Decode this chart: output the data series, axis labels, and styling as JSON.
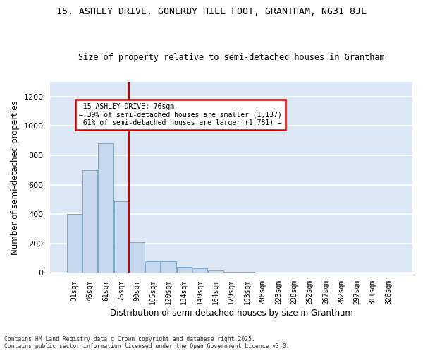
{
  "title1": "15, ASHLEY DRIVE, GONERBY HILL FOOT, GRANTHAM, NG31 8JL",
  "title2": "Size of property relative to semi-detached houses in Grantham",
  "xlabel": "Distribution of semi-detached houses by size in Grantham",
  "ylabel": "Number of semi-detached properties",
  "bar_labels": [
    "31sqm",
    "46sqm",
    "61sqm",
    "75sqm",
    "90sqm",
    "105sqm",
    "120sqm",
    "134sqm",
    "149sqm",
    "164sqm",
    "179sqm",
    "193sqm",
    "208sqm",
    "223sqm",
    "238sqm",
    "252sqm",
    "267sqm",
    "282sqm",
    "297sqm",
    "311sqm",
    "326sqm"
  ],
  "bar_values": [
    400,
    700,
    880,
    490,
    210,
    80,
    80,
    40,
    30,
    15,
    8,
    5,
    3,
    2,
    1,
    1,
    1,
    0,
    0,
    0,
    3
  ],
  "bar_color": "#c5d8ee",
  "bar_edge_color": "#7aabcf",
  "ylim": [
    0,
    1300
  ],
  "yticks": [
    0,
    200,
    400,
    600,
    800,
    1000,
    1200
  ],
  "property_label": "15 ASHLEY DRIVE: 76sqm",
  "pct_smaller": 39,
  "count_smaller": 1137,
  "pct_larger": 61,
  "count_larger": 1781,
  "vline_color": "#cc0000",
  "annotation_box_color": "#cc0000",
  "bg_color": "#dce8f5",
  "footnote1": "Contains HM Land Registry data © Crown copyright and database right 2025.",
  "footnote2": "Contains public sector information licensed under the Open Government Licence v3.0."
}
